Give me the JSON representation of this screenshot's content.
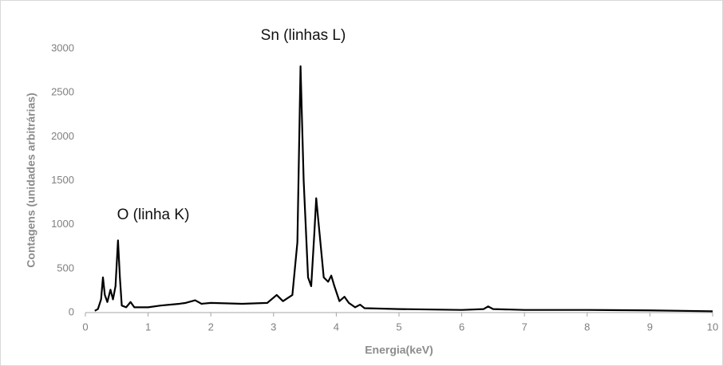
{
  "chart_data": {
    "type": "line",
    "annotations": [
      "Sn (linhas L)",
      "O (linha K)"
    ],
    "x_label": "Energia(keV)",
    "y_label": "Contagens (unidades arbitrárias)",
    "x": [
      0.15,
      0.2,
      0.25,
      0.28,
      0.31,
      0.35,
      0.4,
      0.44,
      0.48,
      0.52,
      0.55,
      0.58,
      0.65,
      0.72,
      0.78,
      1.0,
      1.2,
      1.5,
      1.6,
      1.75,
      1.85,
      2.0,
      2.5,
      2.9,
      3.05,
      3.15,
      3.3,
      3.38,
      3.43,
      3.48,
      3.55,
      3.6,
      3.65,
      3.68,
      3.72,
      3.8,
      3.87,
      3.92,
      3.97,
      4.05,
      4.13,
      4.2,
      4.3,
      4.38,
      4.45,
      5.0,
      6.0,
      6.35,
      6.42,
      6.5,
      7.0,
      8.0,
      9.0,
      10.0
    ],
    "values": [
      20,
      40,
      150,
      400,
      200,
      120,
      260,
      150,
      300,
      820,
      400,
      80,
      60,
      120,
      60,
      60,
      80,
      100,
      110,
      140,
      100,
      110,
      100,
      110,
      200,
      130,
      200,
      800,
      2800,
      1500,
      400,
      300,
      900,
      1300,
      1000,
      400,
      350,
      420,
      300,
      130,
      180,
      110,
      60,
      90,
      50,
      40,
      30,
      40,
      70,
      40,
      30,
      30,
      25,
      15
    ],
    "color": "#000000",
    "xlim": [
      0,
      10
    ],
    "xticks": [
      0,
      1,
      2,
      3,
      4,
      5,
      6,
      7,
      8,
      9,
      10
    ],
    "ylim": [
      0,
      3000
    ],
    "yticks": [
      0,
      500,
      1000,
      1500,
      2000,
      2500,
      3000
    ],
    "grid": false
  }
}
